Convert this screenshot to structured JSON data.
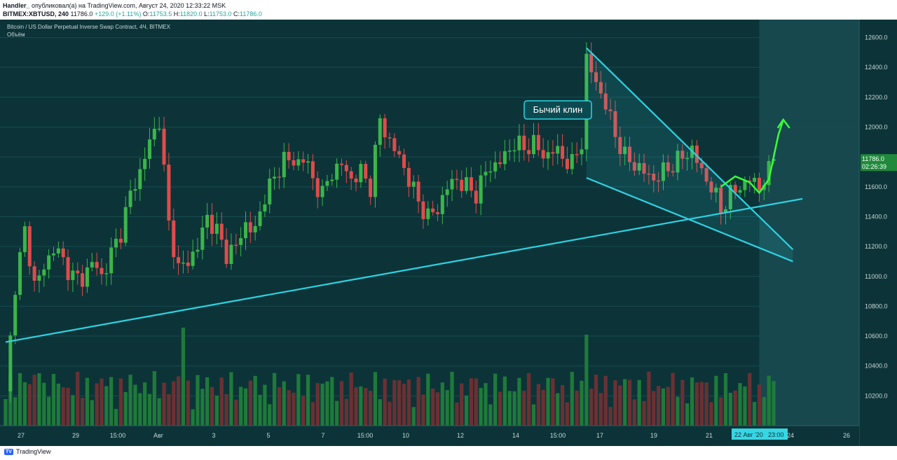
{
  "header": {
    "publisher": "Handler_",
    "publish_text": " опубликовал(а) на TradingView.com, Август 24, 2020 12:33:22 MSK",
    "symbol": "BITMEX:XBTUSD, 240",
    "last": "11786.0",
    "change": "+129.0 (+1.11%)",
    "open_label": "O:",
    "open": "11753.5",
    "high_label": "H:",
    "high": "11820.0",
    "low_label": "L:",
    "low": "11753.0",
    "close_label": "C:",
    "close": "11786.0"
  },
  "legend": {
    "instrument": "Bitcoin / US Dollar Perpetual Inverse Swap Contract, 4Ч, BITMEX",
    "volume_label": "Объём"
  },
  "footer": {
    "brand": "TradingView",
    "logo_icon": "tradingview-logo-icon"
  },
  "colors": {
    "background": "#0c3438",
    "up": "#3bb54a",
    "down": "#e04b4b",
    "vol_up": "#1f7a3a",
    "vol_down": "#6b3033",
    "trendline": "#2fd3e3",
    "annotation_arrow": "#39ff3a",
    "highlight_zone": "#1b4f55"
  },
  "chart_data": {
    "type": "candlestick",
    "y_axis": {
      "ticks": [
        "12600.0",
        "12400.0",
        "12200.0",
        "12000.0",
        "11800.0",
        "11600.0",
        "11400.0",
        "11200.0",
        "11000.0",
        "10800.0",
        "10600.0",
        "10400.0",
        "10200.0"
      ],
      "range": [
        10000,
        12720
      ]
    },
    "x_axis": {
      "ticks": [
        "27",
        "29",
        "15:00",
        "Авг",
        "3",
        "5",
        "7",
        "15:00",
        "10",
        "12",
        "14",
        "15:00",
        "17",
        "19",
        "21",
        "24",
        "26"
      ],
      "crosshair_labels": [
        "22 Авг '20",
        "23:00"
      ]
    },
    "last_price_label": "11786.0",
    "countdown_label": "02:26:39",
    "annotation_label": "Бычий клин",
    "close_path": [
      [
        0,
        10200
      ],
      [
        2,
        10950
      ],
      [
        4,
        11300
      ],
      [
        6,
        10950
      ],
      [
        8,
        11050
      ],
      [
        10,
        11200
      ],
      [
        12,
        11100
      ],
      [
        14,
        11000
      ],
      [
        16,
        10980
      ],
      [
        18,
        11100
      ],
      [
        20,
        11000
      ],
      [
        22,
        11150
      ],
      [
        24,
        11300
      ],
      [
        26,
        11550
      ],
      [
        28,
        11700
      ],
      [
        30,
        11900
      ],
      [
        32,
        12050
      ],
      [
        34,
        11350
      ],
      [
        36,
        11050
      ],
      [
        38,
        11100
      ],
      [
        40,
        11200
      ],
      [
        42,
        11400
      ],
      [
        44,
        11300
      ],
      [
        46,
        11150
      ],
      [
        48,
        11200
      ],
      [
        50,
        11350
      ],
      [
        52,
        11300
      ],
      [
        54,
        11550
      ],
      [
        56,
        11650
      ],
      [
        58,
        11800
      ],
      [
        60,
        11750
      ],
      [
        62,
        11800
      ],
      [
        64,
        11650
      ],
      [
        66,
        11550
      ],
      [
        68,
        11700
      ],
      [
        70,
        11750
      ],
      [
        72,
        11650
      ],
      [
        74,
        11700
      ],
      [
        76,
        11600
      ],
      [
        78,
        12050
      ],
      [
        80,
        11900
      ],
      [
        82,
        11800
      ],
      [
        84,
        11650
      ],
      [
        86,
        11500
      ],
      [
        88,
        11400
      ],
      [
        90,
        11450
      ],
      [
        92,
        11600
      ],
      [
        94,
        11650
      ],
      [
        96,
        11600
      ],
      [
        98,
        11550
      ],
      [
        100,
        11700
      ],
      [
        102,
        11750
      ],
      [
        104,
        11800
      ],
      [
        106,
        11900
      ],
      [
        108,
        11850
      ],
      [
        110,
        11900
      ],
      [
        112,
        11800
      ],
      [
        114,
        11850
      ],
      [
        116,
        11800
      ],
      [
        118,
        11750
      ],
      [
        120,
        11900
      ],
      [
        121,
        12450
      ],
      [
        123,
        12300
      ],
      [
        125,
        12150
      ],
      [
        127,
        11950
      ],
      [
        129,
        11800
      ],
      [
        131,
        11750
      ],
      [
        133,
        11700
      ],
      [
        135,
        11650
      ],
      [
        137,
        11700
      ],
      [
        139,
        11750
      ],
      [
        141,
        11800
      ],
      [
        143,
        11850
      ],
      [
        145,
        11700
      ],
      [
        147,
        11600
      ],
      [
        149,
        11450
      ],
      [
        151,
        11550
      ],
      [
        153,
        11600
      ],
      [
        155,
        11650
      ],
      [
        157,
        11600
      ],
      [
        159,
        11700
      ],
      [
        160,
        11786
      ]
    ],
    "patterns": [
      {
        "type": "trendline",
        "from": [
          0,
          10560
        ],
        "to": [
          166,
          11520
        ]
      },
      {
        "type": "wedge-upper",
        "from": [
          121,
          12530
        ],
        "to": [
          164,
          11180
        ]
      },
      {
        "type": "wedge-lower",
        "from": [
          121,
          11660
        ],
        "to": [
          164,
          11100
        ]
      },
      {
        "type": "projected-path",
        "points": [
          [
            149,
            11600
          ],
          [
            152,
            11670
          ],
          [
            155,
            11630
          ],
          [
            157,
            11560
          ],
          [
            159,
            11650
          ],
          [
            161,
            11950
          ],
          [
            162,
            12050
          ]
        ]
      }
    ]
  }
}
